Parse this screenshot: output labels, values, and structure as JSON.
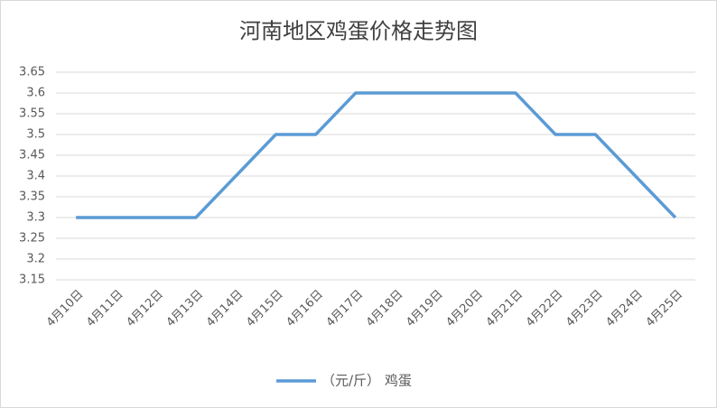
{
  "chart_data": {
    "type": "line",
    "title": "河南地区鸡蛋价格走势图",
    "categories": [
      "4月10日",
      "4月11日",
      "4月12日",
      "4月13日",
      "4月14日",
      "4月15日",
      "4月16日",
      "4月17日",
      "4月18日",
      "4月19日",
      "4月20日",
      "4月21日",
      "4月22日",
      "4月23日",
      "4月24日",
      "4月25日"
    ],
    "series": [
      {
        "name": "（元/斤） 鸡蛋",
        "color": "#5b9bd5",
        "values": [
          3.3,
          3.3,
          3.3,
          3.3,
          3.4,
          3.5,
          3.5,
          3.6,
          3.6,
          3.6,
          3.6,
          3.6,
          3.5,
          3.5,
          3.4,
          3.3
        ]
      }
    ],
    "ylim": [
      3.15,
      3.65
    ],
    "yticks": [
      3.15,
      3.2,
      3.25,
      3.3,
      3.35,
      3.4,
      3.45,
      3.5,
      3.55,
      3.6,
      3.65
    ],
    "grid": true,
    "legend": "bottom"
  }
}
